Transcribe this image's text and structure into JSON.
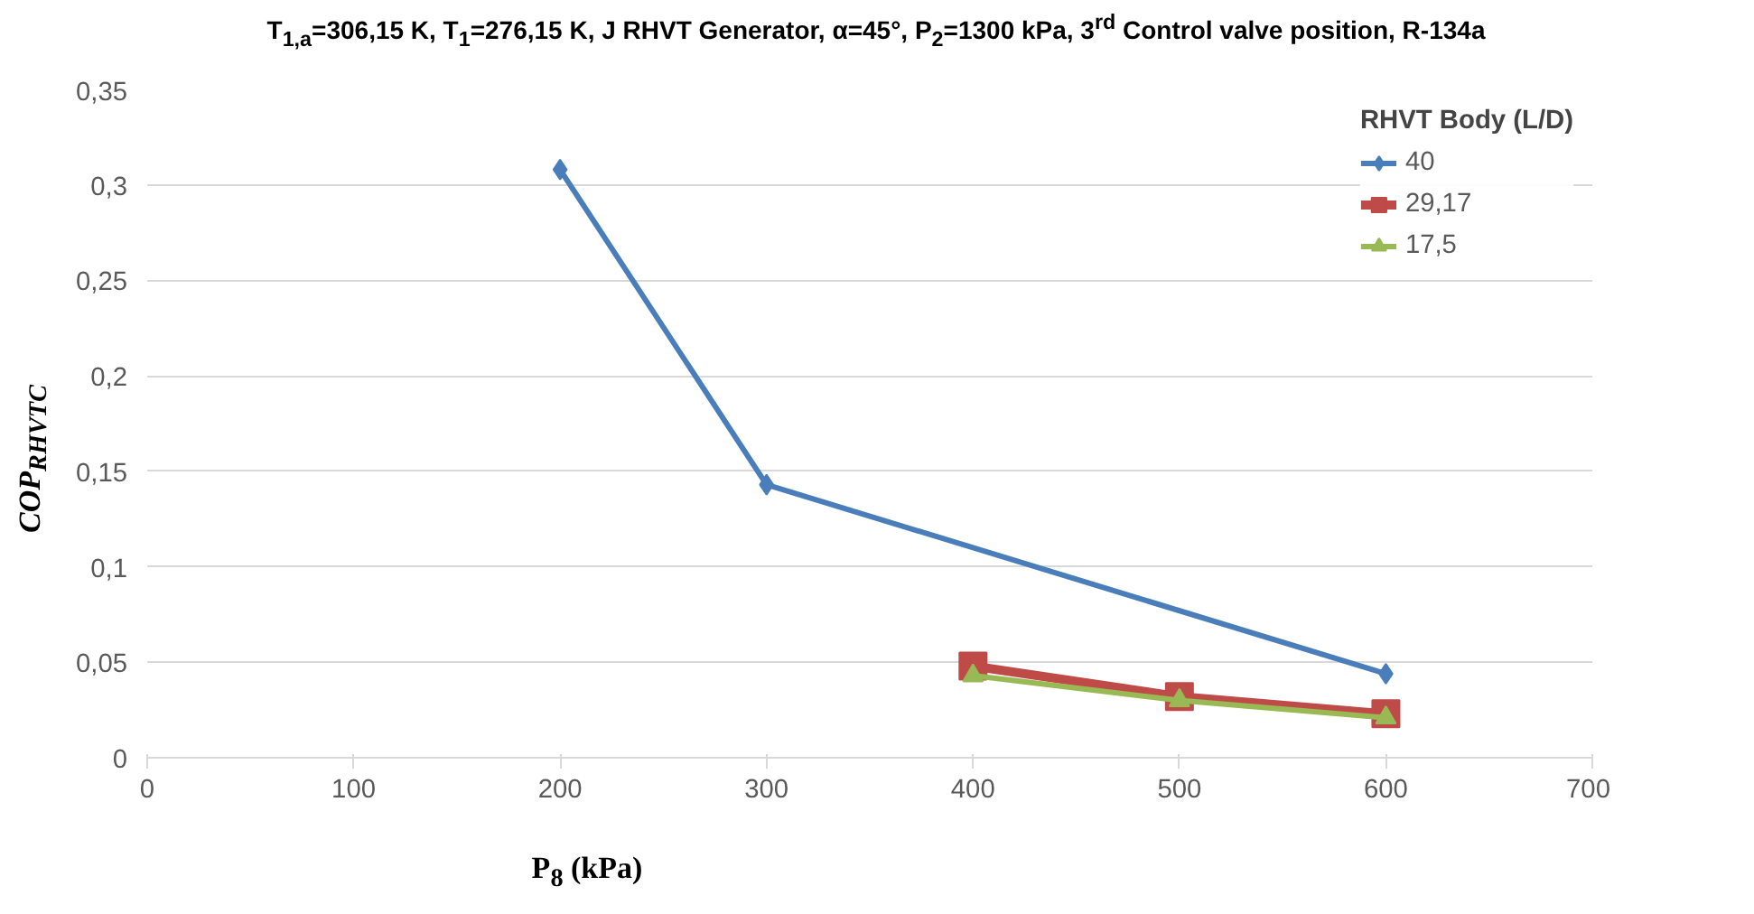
{
  "chart_data": {
    "type": "line",
    "title": "T$_{1,a}$=306,15 K, T$_{1}$=276,15 K, J RHVT Generator, α=45°, P$_{2}$=1300 kPa, 3$^{rd}$ Control valve position, R-134a",
    "xlabel": "P$_{8}$ (kPa)",
    "ylabel": "COP$_{RHVTC}$",
    "legend_title": "RHVT Body (L/D)",
    "xlim": [
      0,
      700
    ],
    "xticks": [
      0,
      100,
      200,
      300,
      400,
      500,
      600,
      700
    ],
    "ylim": [
      0,
      0.35
    ],
    "yticks": [
      0,
      {
        "value": 0.05,
        "label": "0,05"
      },
      {
        "value": 0.1,
        "label": "0,1"
      },
      {
        "value": 0.15,
        "label": "0,15"
      },
      {
        "value": 0.2,
        "label": "0,2"
      },
      {
        "value": 0.25,
        "label": "0,25"
      },
      {
        "value": 0.3,
        "label": "0,3"
      },
      {
        "value": 0.35,
        "label": "0,35"
      }
    ],
    "grid": "y",
    "legend": "top right",
    "series": [
      {
        "name": "40",
        "color": "#4a7ebb",
        "marker": "diamond",
        "x": [
          200,
          300,
          600
        ],
        "values": [
          0.308,
          0.143,
          0.044
        ]
      },
      {
        "name": "29,17",
        "color": "#be4b48",
        "marker": "square",
        "x": [
          400,
          500,
          600
        ],
        "values": [
          0.048,
          0.032,
          0.023
        ]
      },
      {
        "name": "17,5",
        "color": "#98b954",
        "marker": "triangle",
        "x": [
          400,
          500,
          600
        ],
        "values": [
          0.043,
          0.03,
          0.021
        ]
      }
    ]
  }
}
